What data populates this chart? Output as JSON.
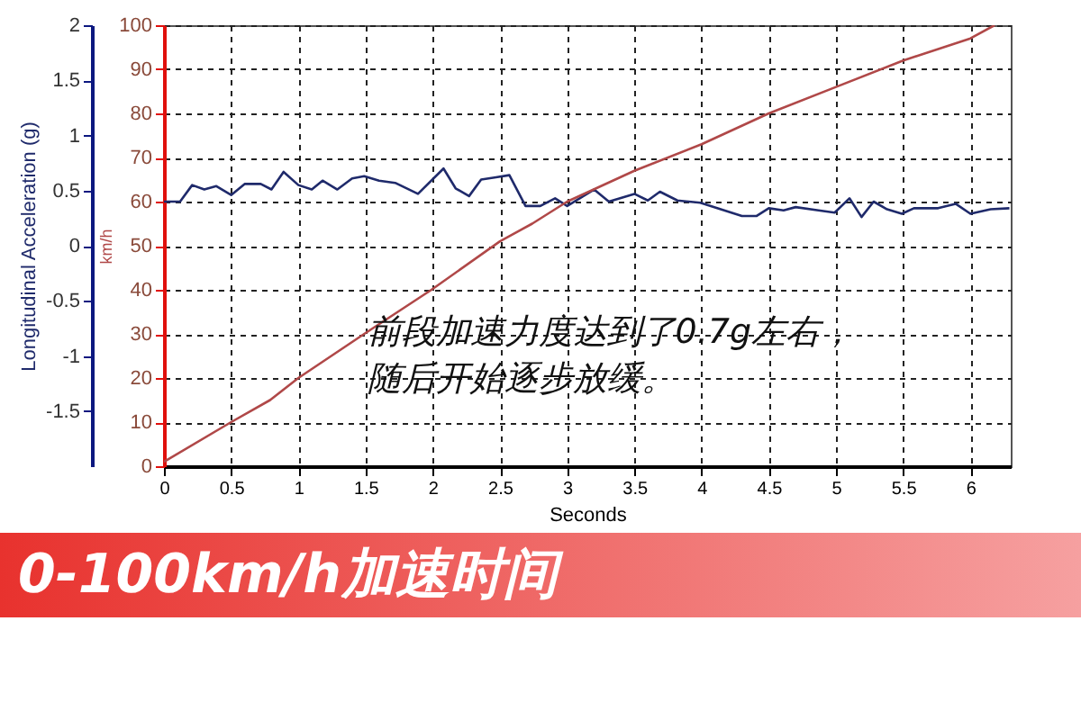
{
  "chart_data": {
    "type": "line",
    "title": "0-100km/h加速时间",
    "xlabel": "Seconds",
    "ylabel": "Longitudinal Acceleration (g)",
    "y2label": "km/h",
    "xlim": [
      0,
      6.3
    ],
    "xticks": [
      0,
      0.5,
      1,
      1.5,
      2,
      2.5,
      3,
      3.5,
      4,
      4.5,
      5,
      5.5,
      6
    ],
    "ylim": [
      -2,
      2
    ],
    "yticks": [
      -1.5,
      -1,
      -0.5,
      0,
      0.5,
      1,
      1.5,
      2
    ],
    "y2lim": [
      0,
      100
    ],
    "y2ticks": [
      0,
      10,
      20,
      30,
      40,
      50,
      60,
      70,
      80,
      90,
      100
    ],
    "grid": true,
    "annotations": [
      "前段加速力度达到了0.7g左右，",
      "随后开始逐步放缓。"
    ],
    "series": [
      {
        "color": "#1f2a6b",
        "x": [
          0,
          0.12,
          0.21,
          0.3,
          0.39,
          0.5,
          0.6,
          0.72,
          0.8,
          0.89,
          1,
          1.1,
          1.18,
          1.29,
          1.4,
          1.49,
          1.6,
          1.72,
          1.89,
          2.08,
          2.17,
          2.27,
          2.36,
          2.47,
          2.57,
          2.69,
          2.8,
          2.91,
          3,
          3.2,
          3.31,
          3.5,
          3.6,
          3.69,
          3.82,
          3.99,
          4.3,
          4.41,
          4.5,
          4.61,
          4.7,
          4.87,
          4.99,
          5.1,
          5.19,
          5.28,
          5.38,
          5.49,
          5.58,
          5.76,
          5.89,
          6,
          6.15,
          6.29
        ],
        "values": [
          0.4,
          0.4,
          0.55,
          0.51,
          0.54,
          0.46,
          0.56,
          0.56,
          0.51,
          0.67,
          0.55,
          0.51,
          0.59,
          0.51,
          0.61,
          0.63,
          0.59,
          0.57,
          0.47,
          0.7,
          0.52,
          0.45,
          0.6,
          0.62,
          0.64,
          0.36,
          0.36,
          0.43,
          0.36,
          0.51,
          0.4,
          0.47,
          0.41,
          0.49,
          0.41,
          0.39,
          0.27,
          0.27,
          0.34,
          0.32,
          0.35,
          0.32,
          0.3,
          0.43,
          0.26,
          0.4,
          0.33,
          0.29,
          0.34,
          0.34,
          0.38,
          0.29,
          0.33,
          0.34
        ]
      },
      {
        "color": "#b04848",
        "axis": "y2",
        "x": [
          0,
          0.5,
          0.79,
          1,
          1.49,
          1.99,
          2.5,
          2.74,
          3,
          3.5,
          4,
          4.5,
          5,
          5.5,
          6,
          6.18
        ],
        "values": [
          1,
          10,
          15,
          20,
          30,
          40,
          51,
          55,
          60,
          67,
          73,
          80,
          86,
          92,
          97,
          100
        ]
      }
    ]
  }
}
